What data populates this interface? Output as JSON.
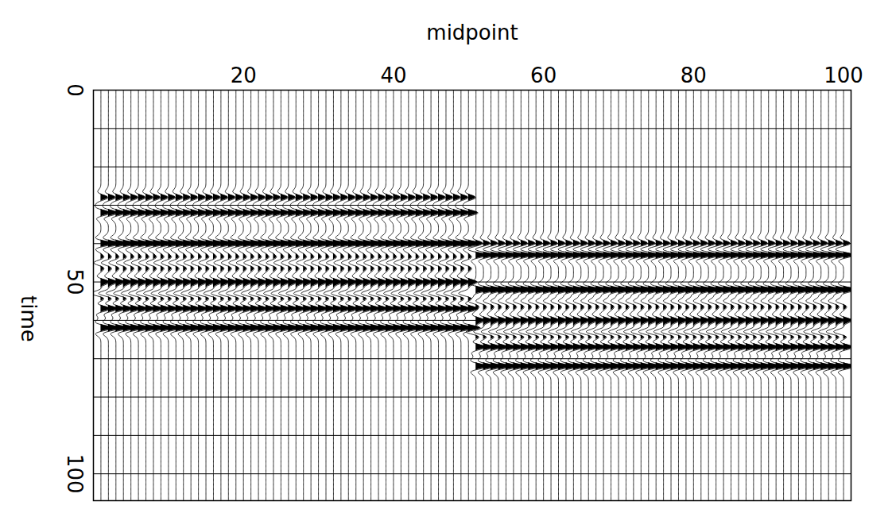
{
  "chart_data": {
    "type": "wiggle",
    "x_label": "midpoint",
    "y_label": "time",
    "xlim": [
      0,
      101
    ],
    "xticks": [
      20,
      40,
      60,
      80,
      100
    ],
    "ylim": [
      0,
      107
    ],
    "yticks": [
      0,
      50,
      100
    ],
    "grid": true,
    "grid_lines": [
      10,
      20,
      30,
      40,
      50,
      60,
      70,
      80,
      90,
      100
    ],
    "color": "#000000",
    "midpoints": [
      1,
      2,
      3,
      4,
      5,
      6,
      7,
      8,
      9,
      10,
      11,
      12,
      13,
      14,
      15,
      16,
      17,
      18,
      19,
      20,
      21,
      22,
      23,
      24,
      25,
      26,
      27,
      28,
      29,
      30,
      31,
      32,
      33,
      34,
      35,
      36,
      37,
      38,
      39,
      40,
      41,
      42,
      43,
      44,
      45,
      46,
      47,
      48,
      49,
      50,
      51,
      52,
      53,
      54,
      55,
      56,
      57,
      58,
      59,
      60,
      61,
      62,
      63,
      64,
      65,
      66,
      67,
      68,
      69,
      70,
      71,
      72,
      73,
      74,
      75,
      76,
      77,
      78,
      79,
      80,
      81,
      82,
      83,
      84,
      85,
      86,
      87,
      88,
      89,
      90,
      91,
      92,
      93,
      94,
      95,
      96,
      97,
      98,
      99,
      100
    ],
    "reflectors": [
      {
        "from": 1,
        "to": 50,
        "time": 28,
        "amplitude": 0.6
      },
      {
        "from": 1,
        "to": 50,
        "time": 32,
        "amplitude": 0.8
      },
      {
        "from": 1,
        "to": 50,
        "time": 40,
        "amplitude": 1.0
      },
      {
        "from": 1,
        "to": 50,
        "time": 45,
        "amplitude": -0.6
      },
      {
        "from": 1,
        "to": 50,
        "time": 50,
        "amplitude": 0.7
      },
      {
        "from": 1,
        "to": 50,
        "time": 53,
        "amplitude": -0.8
      },
      {
        "from": 1,
        "to": 50,
        "time": 57,
        "amplitude": 0.8
      },
      {
        "from": 1,
        "to": 50,
        "time": 62,
        "amplitude": 1.0
      },
      {
        "from": 51,
        "to": 100,
        "time": 40,
        "amplitude": 0.6
      },
      {
        "from": 51,
        "to": 100,
        "time": 43,
        "amplitude": 0.9
      },
      {
        "from": 51,
        "to": 100,
        "time": 52,
        "amplitude": 1.0
      },
      {
        "from": 51,
        "to": 100,
        "time": 55,
        "amplitude": -0.6
      },
      {
        "from": 51,
        "to": 100,
        "time": 60,
        "amplitude": 0.7
      },
      {
        "from": 51,
        "to": 100,
        "time": 63,
        "amplitude": -0.8
      },
      {
        "from": 51,
        "to": 100,
        "time": 67,
        "amplitude": 0.8
      },
      {
        "from": 51,
        "to": 100,
        "time": 72,
        "amplitude": 1.0
      }
    ]
  }
}
